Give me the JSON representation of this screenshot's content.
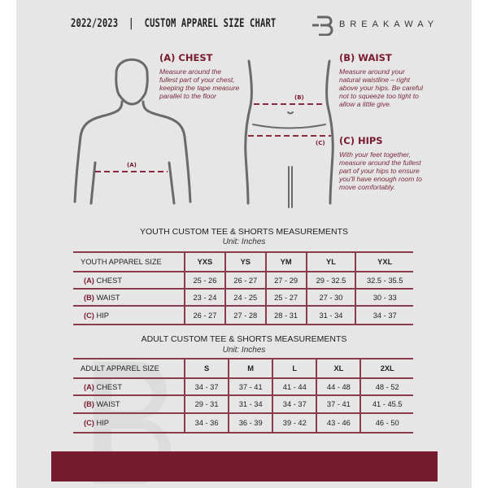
{
  "header": {
    "title": "2022/2023  |  CUSTOM APPAREL SIZE CHART",
    "brand": "BREAKAWAY"
  },
  "guide": {
    "chest": {
      "heading": "(A) CHEST",
      "text": "Measure around the fullest part of your chest, keeping the tape measure parallel to the floor",
      "marker": "(A)"
    },
    "waist": {
      "heading": "(B) WAIST",
      "text": "Measure around your natural waistline – right above your hips. Be careful not to squeeze too tight to allow a little give.",
      "marker": "(B)"
    },
    "hips": {
      "heading": "(C) HIPS",
      "text": "With your feet together, measure around the fullest part of your hips to ensure you'll have enough room to move comfortably.",
      "marker": "(C)"
    }
  },
  "youth": {
    "title": "YOUTH CUSTOM TEE & SHORTS MEASUREMENTS",
    "unit": "Unit: Inches",
    "header": "YOUTH APPAREL SIZE",
    "sizes": [
      "YXS",
      "YS",
      "YM",
      "YL",
      "YXL"
    ],
    "rows": [
      {
        "key": "(A)",
        "label": "CHEST",
        "values": [
          "25 - 26",
          "26 - 27",
          "27 - 29",
          "29 - 32.5",
          "32.5 - 35.5"
        ]
      },
      {
        "key": "(B)",
        "label": "WAIST",
        "values": [
          "23 - 24",
          "24 - 25",
          "25 - 27",
          "27 - 30",
          "30 - 33"
        ]
      },
      {
        "key": "(C)",
        "label": "HIP",
        "values": [
          "26 - 27",
          "27 - 28",
          "28 - 31",
          "31 - 34",
          "34 - 37"
        ]
      }
    ]
  },
  "adult": {
    "title": "ADULT CUSTOM TEE & SHORTS MEASUREMENTS",
    "unit": "Unit: Inches",
    "header": "ADULT APPAREL SIZE",
    "sizes": [
      "S",
      "M",
      "L",
      "XL",
      "2XL"
    ],
    "rows": [
      {
        "key": "(A)",
        "label": "CHEST",
        "values": [
          "34 - 37",
          "37 - 41",
          "41 - 44",
          "44 - 48",
          "48 - 52"
        ]
      },
      {
        "key": "(B)",
        "label": "WAIST",
        "values": [
          "29 - 31",
          "31 - 34",
          "34 - 37",
          "37 - 41",
          "41 - 45.5"
        ]
      },
      {
        "key": "(C)",
        "label": "HIP",
        "values": [
          "34 - 36",
          "36 - 39",
          "39 - 42",
          "43 - 46",
          "46 - 50"
        ]
      }
    ]
  },
  "colors": {
    "accent": "#761b30",
    "panel": "#e6e6e7"
  }
}
